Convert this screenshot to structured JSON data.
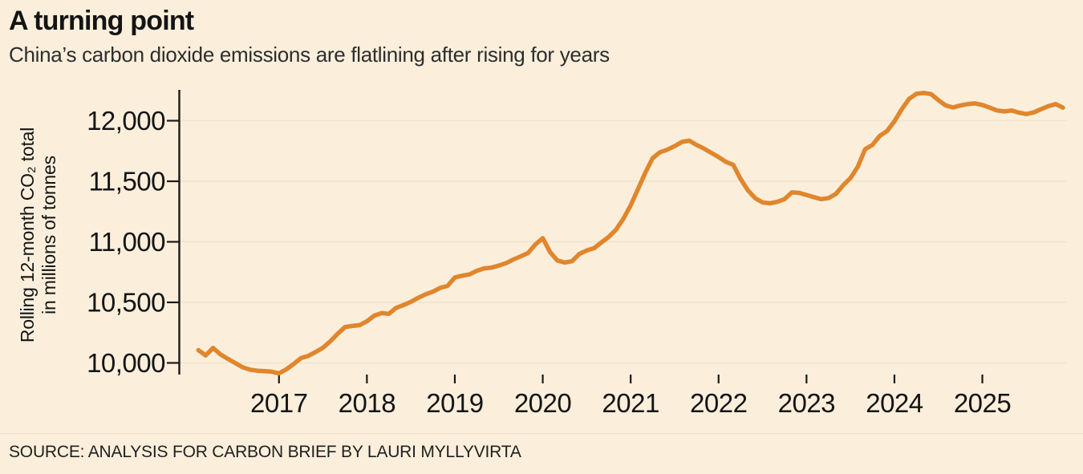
{
  "header": {
    "title": "A turning point",
    "subtitle": "China’s carbon dioxide emissions are flatlining after rising for years"
  },
  "source": {
    "label": "SOURCE: ANALYSIS FOR CARBON BRIEF BY LAURI MYLLYVIRTA"
  },
  "colors": {
    "background": "#fbefdc",
    "line": "#e0862d",
    "grid": "#efe4d0",
    "axis": "#1a1a1a",
    "text": "#141414"
  },
  "chart_data": {
    "type": "line",
    "title": "A turning point",
    "subtitle": "China’s carbon dioxide emissions are flatlining after rising for years",
    "ylabel_line1": "Rolling 12-month CO₂ total",
    "ylabel_line2": "in millions of tonnes",
    "grid": "horizontal",
    "legend": "none",
    "ylim": [
      9900,
      12260
    ],
    "y_ticks_values": [
      10000,
      10500,
      11000,
      11500,
      12000
    ],
    "y_tick_labels": [
      "10,000",
      "10,500",
      "11,000",
      "11,500",
      "12,000"
    ],
    "x_tick_labels": [
      "2017",
      "2018",
      "2019",
      "2020",
      "2021",
      "2022",
      "2023",
      "2024",
      "2025"
    ],
    "series": [
      {
        "name": "Rolling 12-month CO2 total (millions of tonnes)",
        "frequency": "monthly",
        "start_month": "2016-02",
        "end_month": "2025-12",
        "values": [
          10105,
          10062,
          10124,
          10071,
          10035,
          10000,
          9965,
          9945,
          9936,
          9932,
          9928,
          9914,
          9947,
          9991,
          10040,
          10058,
          10090,
          10125,
          10178,
          10240,
          10296,
          10305,
          10312,
          10344,
          10390,
          10411,
          10405,
          10455,
          10478,
          10504,
          10538,
          10566,
          10588,
          10620,
          10636,
          10706,
          10720,
          10731,
          10760,
          10781,
          10787,
          10804,
          10824,
          10854,
          10880,
          10908,
          10978,
          11030,
          10915,
          10846,
          10829,
          10840,
          10900,
          10928,
          10948,
          10995,
          11040,
          11100,
          11190,
          11300,
          11435,
          11570,
          11690,
          11740,
          11760,
          11790,
          11825,
          11835,
          11800,
          11770,
          11735,
          11700,
          11660,
          11636,
          11520,
          11425,
          11360,
          11325,
          11318,
          11330,
          11352,
          11408,
          11404,
          11387,
          11369,
          11352,
          11361,
          11395,
          11466,
          11526,
          11620,
          11765,
          11800,
          11875,
          11915,
          11995,
          12095,
          12180,
          12222,
          12229,
          12220,
          12170,
          12126,
          12110,
          12125,
          12138,
          12143,
          12130,
          12108,
          12085,
          12077,
          12084,
          12066,
          12055,
          12068,
          12095,
          12120,
          12137,
          12108
        ]
      }
    ]
  }
}
